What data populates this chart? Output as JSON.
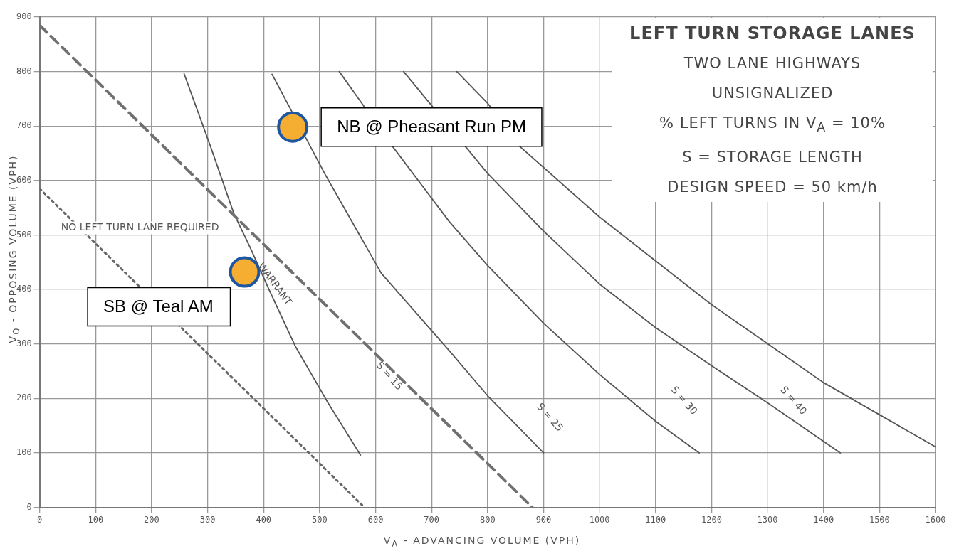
{
  "chart_data": {
    "type": "line",
    "title": "LEFT TURN STORAGE LANES",
    "xlabel": "V$_{A}$ - ADVANCING VOLUME (VPH)",
    "ylabel": "V$_{O}$ - OPPOSING VOLUME (VPH)",
    "xlim": [
      0,
      1600
    ],
    "xticks": [
      0,
      100,
      200,
      300,
      400,
      500,
      600,
      700,
      800,
      900,
      1000,
      1100,
      1200,
      1300,
      1400,
      1500,
      1600
    ],
    "ylim": [
      0,
      900
    ],
    "yticks": [
      0,
      100,
      200,
      300,
      400,
      500,
      600,
      700,
      800,
      900
    ],
    "grid": true,
    "legend": false,
    "marker": "none",
    "series": [
      {
        "line_style": "dotted",
        "color": "#666666",
        "x": [
          0,
          580
        ],
        "values": [
          585,
          0
        ]
      },
      {
        "line_style": "dashed",
        "color": "#707070",
        "x": [
          0,
          880
        ],
        "values": [
          885,
          0
        ]
      },
      {
        "line_style": "solid",
        "color": "#555555",
        "x": [
          258,
          305,
          347,
          376,
          410,
          457,
          515,
          573
        ],
        "values": [
          796,
          663,
          539,
          477,
          399,
          295,
          192,
          96
        ]
      },
      {
        "line_style": "solid",
        "color": "#555555",
        "x": [
          415,
          510,
          610,
          732,
          800,
          900
        ],
        "values": [
          795,
          611,
          430,
          287,
          205,
          100
        ]
      },
      {
        "line_style": "solid",
        "color": "#555555",
        "x": [
          535,
          630,
          732,
          800,
          900,
          1000,
          1100,
          1178
        ],
        "values": [
          800,
          663,
          524,
          444,
          338,
          244,
          158,
          100
        ]
      },
      {
        "line_style": "solid",
        "color": "#555555",
        "x": [
          650,
          800,
          900,
          1000,
          1100,
          1200,
          1300,
          1430
        ],
        "values": [
          800,
          613,
          507,
          410,
          330,
          260,
          192,
          100
        ]
      },
      {
        "line_style": "solid",
        "color": "#555555",
        "x": [
          745,
          800,
          858,
          1000,
          1200,
          1400,
          1600
        ],
        "values": [
          800,
          742,
          662,
          533,
          372,
          229,
          111
        ]
      },
      {
        "type": "scatter",
        "marker": "circle",
        "name": "NB @ Pheasant Run PM",
        "color": "#f5ae32",
        "x": [
          452
        ],
        "values": [
          698
        ]
      },
      {
        "type": "scatter",
        "marker": "circle",
        "name": "SB @ Teal AM",
        "color": "#f5ae32",
        "x": [
          366
        ],
        "values": [
          432
        ]
      }
    ],
    "annotations": [
      "TWO LANE HIGHWAYS",
      "UNSIGNALIZED",
      "% LEFT TURNS IN V$_{A}$ = 10%",
      "S = STORAGE LENGTH",
      "DESIGN SPEED = 50 km/h",
      "NO LEFT TURN LANE REQUIRED",
      "WARRANT",
      "S = 15",
      "S = 25",
      "S = 30",
      "S = 40"
    ]
  }
}
